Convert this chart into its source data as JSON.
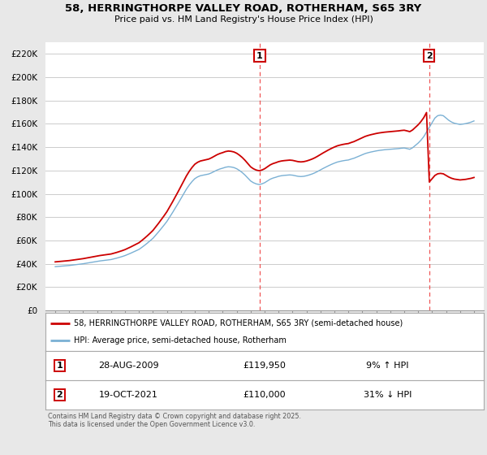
{
  "title1": "58, HERRINGTHORPE VALLEY ROAD, ROTHERHAM, S65 3RY",
  "title2": "Price paid vs. HM Land Registry's House Price Index (HPI)",
  "ylim": [
    0,
    230000
  ],
  "yticks": [
    0,
    20000,
    40000,
    60000,
    80000,
    100000,
    120000,
    140000,
    160000,
    180000,
    200000,
    220000
  ],
  "ytick_labels": [
    "£0",
    "£20K",
    "£40K",
    "£60K",
    "£80K",
    "£100K",
    "£120K",
    "£140K",
    "£160K",
    "£180K",
    "£200K",
    "£220K"
  ],
  "line1_color": "#cc0000",
  "line2_color": "#7ab0d4",
  "marker1_date": 2009.65,
  "marker2_date": 2021.79,
  "vline_color": "#ee4444",
  "legend_line1": "58, HERRINGTHORPE VALLEY ROAD, ROTHERHAM, S65 3RY (semi-detached house)",
  "legend_line2": "HPI: Average price, semi-detached house, Rotherham",
  "table_row1": [
    "1",
    "28-AUG-2009",
    "£119,950",
    "9% ↑ HPI"
  ],
  "table_row2": [
    "2",
    "19-OCT-2021",
    "£110,000",
    "31% ↓ HPI"
  ],
  "footnote": "Contains HM Land Registry data © Crown copyright and database right 2025.\nThis data is licensed under the Open Government Licence v3.0.",
  "bg_color": "#e8e8e8",
  "plot_bg_color": "#ffffff",
  "grid_color": "#cccccc",
  "xlim_left": 1994.3,
  "xlim_right": 2025.7
}
